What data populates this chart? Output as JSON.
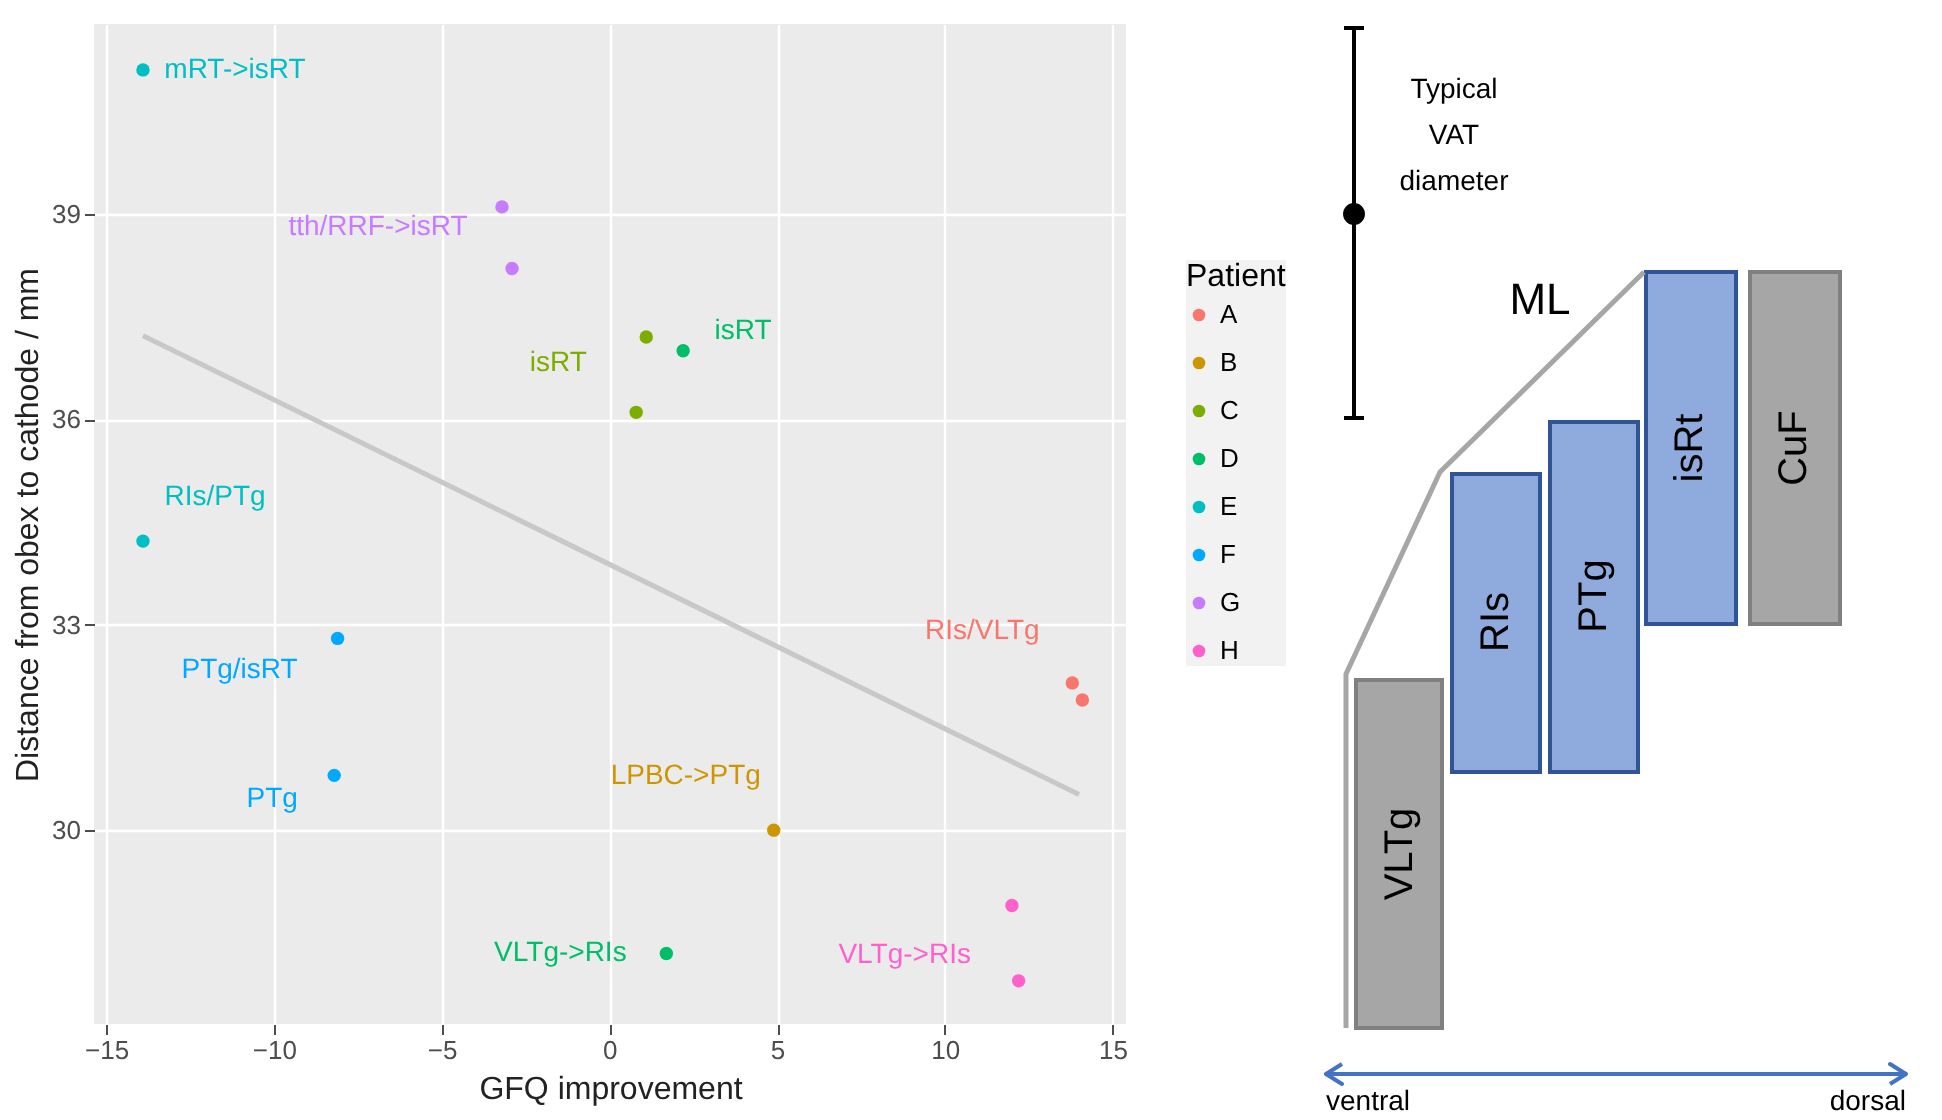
{
  "chart_data": [
    {
      "type": "scatter",
      "xlabel": "GFQ improvement",
      "ylabel": "Distance from obex to cathode / mm",
      "legend_title": "Patient",
      "legend": "right",
      "grid": true,
      "marker": "circle",
      "xlim": [
        -15.36,
        15.4
      ],
      "ylim": [
        27.17,
        41.77
      ],
      "xticks": [
        -15,
        -10,
        -5,
        0,
        5,
        10,
        15
      ],
      "yticks": [
        30,
        33,
        36,
        39
      ],
      "series": [
        {
          "name": "A",
          "color": "#F8766D",
          "x": [
            13.8,
            14.1
          ],
          "values": [
            32.15,
            31.9
          ],
          "value_labels": [
            "RIs/VLTg",
            null
          ]
        },
        {
          "name": "B",
          "color": "#CD9600",
          "x": [
            4.9
          ],
          "values": [
            30.0
          ],
          "value_labels": [
            "LPBC->PTg"
          ]
        },
        {
          "name": "C",
          "color": "#7CAE00",
          "x": [
            1.1,
            0.8
          ],
          "values": [
            37.2,
            36.1
          ],
          "value_labels": [
            "isRT",
            null
          ]
        },
        {
          "name": "D",
          "color": "#00BE67",
          "x": [
            2.2,
            1.7
          ],
          "values": [
            37.0,
            28.2
          ],
          "value_labels": [
            "isRT",
            "VLTg->RIs"
          ]
        },
        {
          "name": "E",
          "color": "#00BFC4",
          "x": [
            -13.9,
            -13.9
          ],
          "values": [
            41.1,
            34.22
          ],
          "value_labels": [
            "mRT->isRT",
            "RIs/PTg"
          ]
        },
        {
          "name": "F",
          "color": "#00A9FF",
          "x": [
            -8.1,
            -8.2
          ],
          "values": [
            32.8,
            30.8
          ],
          "value_labels": [
            "PTg/isRT",
            "PTg"
          ]
        },
        {
          "name": "G",
          "color": "#C77CFF",
          "x": [
            -3.2,
            -2.9
          ],
          "values": [
            39.1,
            38.2
          ],
          "value_labels": [
            "tth/RRF->isRT",
            null
          ]
        },
        {
          "name": "H",
          "color": "#FF61CC",
          "x": [
            12.0,
            12.2
          ],
          "values": [
            28.9,
            27.8
          ],
          "value_labels": [
            null,
            "VLTg->RIs"
          ]
        },
        {
          "type": "line",
          "color": "#c8c8c8",
          "marker": "none",
          "x": [
            -13.9,
            14.0
          ],
          "values": [
            37.22,
            30.52
          ]
        }
      ]
    },
    {
      "type": "other",
      "annotations": [
        "Typical VAT diameter",
        "ML",
        "VLTg",
        "RIs",
        "PTg",
        "isRt",
        "CuF",
        "ventral",
        "dorsal"
      ]
    }
  ]
}
